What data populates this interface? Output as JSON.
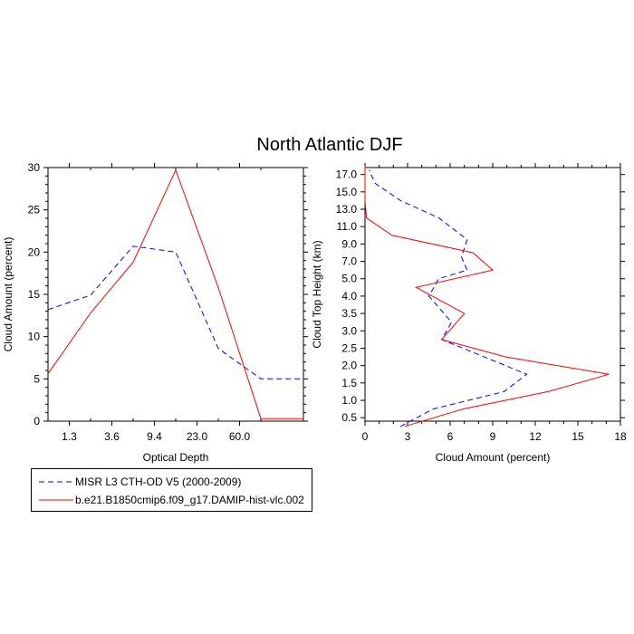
{
  "figure": {
    "title": "North Atlantic DJF",
    "legend": [
      {
        "label": "MISR L3 CTH-OD V5 (2000-2009)",
        "color": "#0000ff",
        "style": "dashed"
      },
      {
        "label": "b.e21.B1850cmip6.f09_g17.DAMIP-hist-vlc.002",
        "color": "#ff0000",
        "style": "solid"
      }
    ]
  },
  "chart_data": [
    {
      "type": "line",
      "xlabel": "Optical Depth",
      "ylabel": "Cloud Amount (percent)",
      "x_tick_labels": [
        "1.3",
        "3.6",
        "9.4",
        "23.0",
        "60.0"
      ],
      "yticks": [
        0,
        5,
        10,
        15,
        20,
        25,
        30
      ],
      "xlim": [
        0,
        6
      ],
      "ylim": [
        0,
        30
      ],
      "series": [
        {
          "name": "MISR L3 CTH-OD V5 (2000-2009)",
          "color": "#0000ff",
          "style": "dashed",
          "x": [
            0,
            1,
            2,
            3,
            4,
            5,
            6
          ],
          "y": [
            13.2,
            14.9,
            20.7,
            20.0,
            8.6,
            5.0,
            5.0
          ]
        },
        {
          "name": "b.e21.B1850cmip6.f09_g17.DAMIP-hist-vlc.002",
          "color": "#ff0000",
          "style": "solid",
          "x": [
            0,
            1,
            2,
            3,
            4,
            5,
            6
          ],
          "y": [
            5.6,
            12.8,
            18.8,
            29.7,
            15.8,
            0.3,
            0.3
          ]
        }
      ]
    },
    {
      "type": "line",
      "xlabel": "Cloud Amount (percent)",
      "ylabel": "Cloud Top Height (km)",
      "xticks": [
        0,
        3,
        6,
        9,
        12,
        15,
        18
      ],
      "y_tick_labels": [
        "0.5",
        "1.0",
        "1.5",
        "2.0",
        "2.5",
        "3.0",
        "3.5",
        "4.0",
        "5.0",
        "7.0",
        "9.0",
        "11.0",
        "13.0",
        "15.0",
        "17.0"
      ],
      "xlim": [
        0,
        18
      ],
      "series": [
        {
          "name": "MISR L3 CTH-OD V5 (2000-2009)",
          "color": "#0000ff",
          "style": "dashed",
          "height_km": [
            "0.25",
            "0.75",
            "1.25",
            "1.75",
            "2.75",
            "3.25",
            "4.0",
            "5.0",
            "6.0",
            "7.5",
            "9.5",
            "12.0",
            "14.0",
            "16.0",
            "17.5"
          ],
          "values": [
            2.5,
            4.8,
            9.8,
            11.4,
            5.4,
            6.1,
            4.5,
            5.2,
            7.2,
            6.8,
            7.2,
            5.2,
            2.5,
            0.7,
            0.3
          ]
        },
        {
          "name": "b.e21.B1850cmip6.f09_g17.DAMIP-hist-vlc.002",
          "color": "#ff0000",
          "style": "solid",
          "height_km": [
            "0.25",
            "0.75",
            "1.25",
            "1.75",
            "2.25",
            "2.75",
            "3.5",
            "4.5",
            "6.0",
            "8.0",
            "10.0",
            "12.0",
            "14.0",
            "16.0",
            "18.0"
          ],
          "values": [
            2.8,
            6.9,
            12.9,
            17.2,
            9.9,
            5.4,
            7.0,
            3.6,
            9.0,
            7.6,
            1.9,
            0.1,
            0.0,
            0.0,
            0.0
          ]
        }
      ]
    }
  ]
}
